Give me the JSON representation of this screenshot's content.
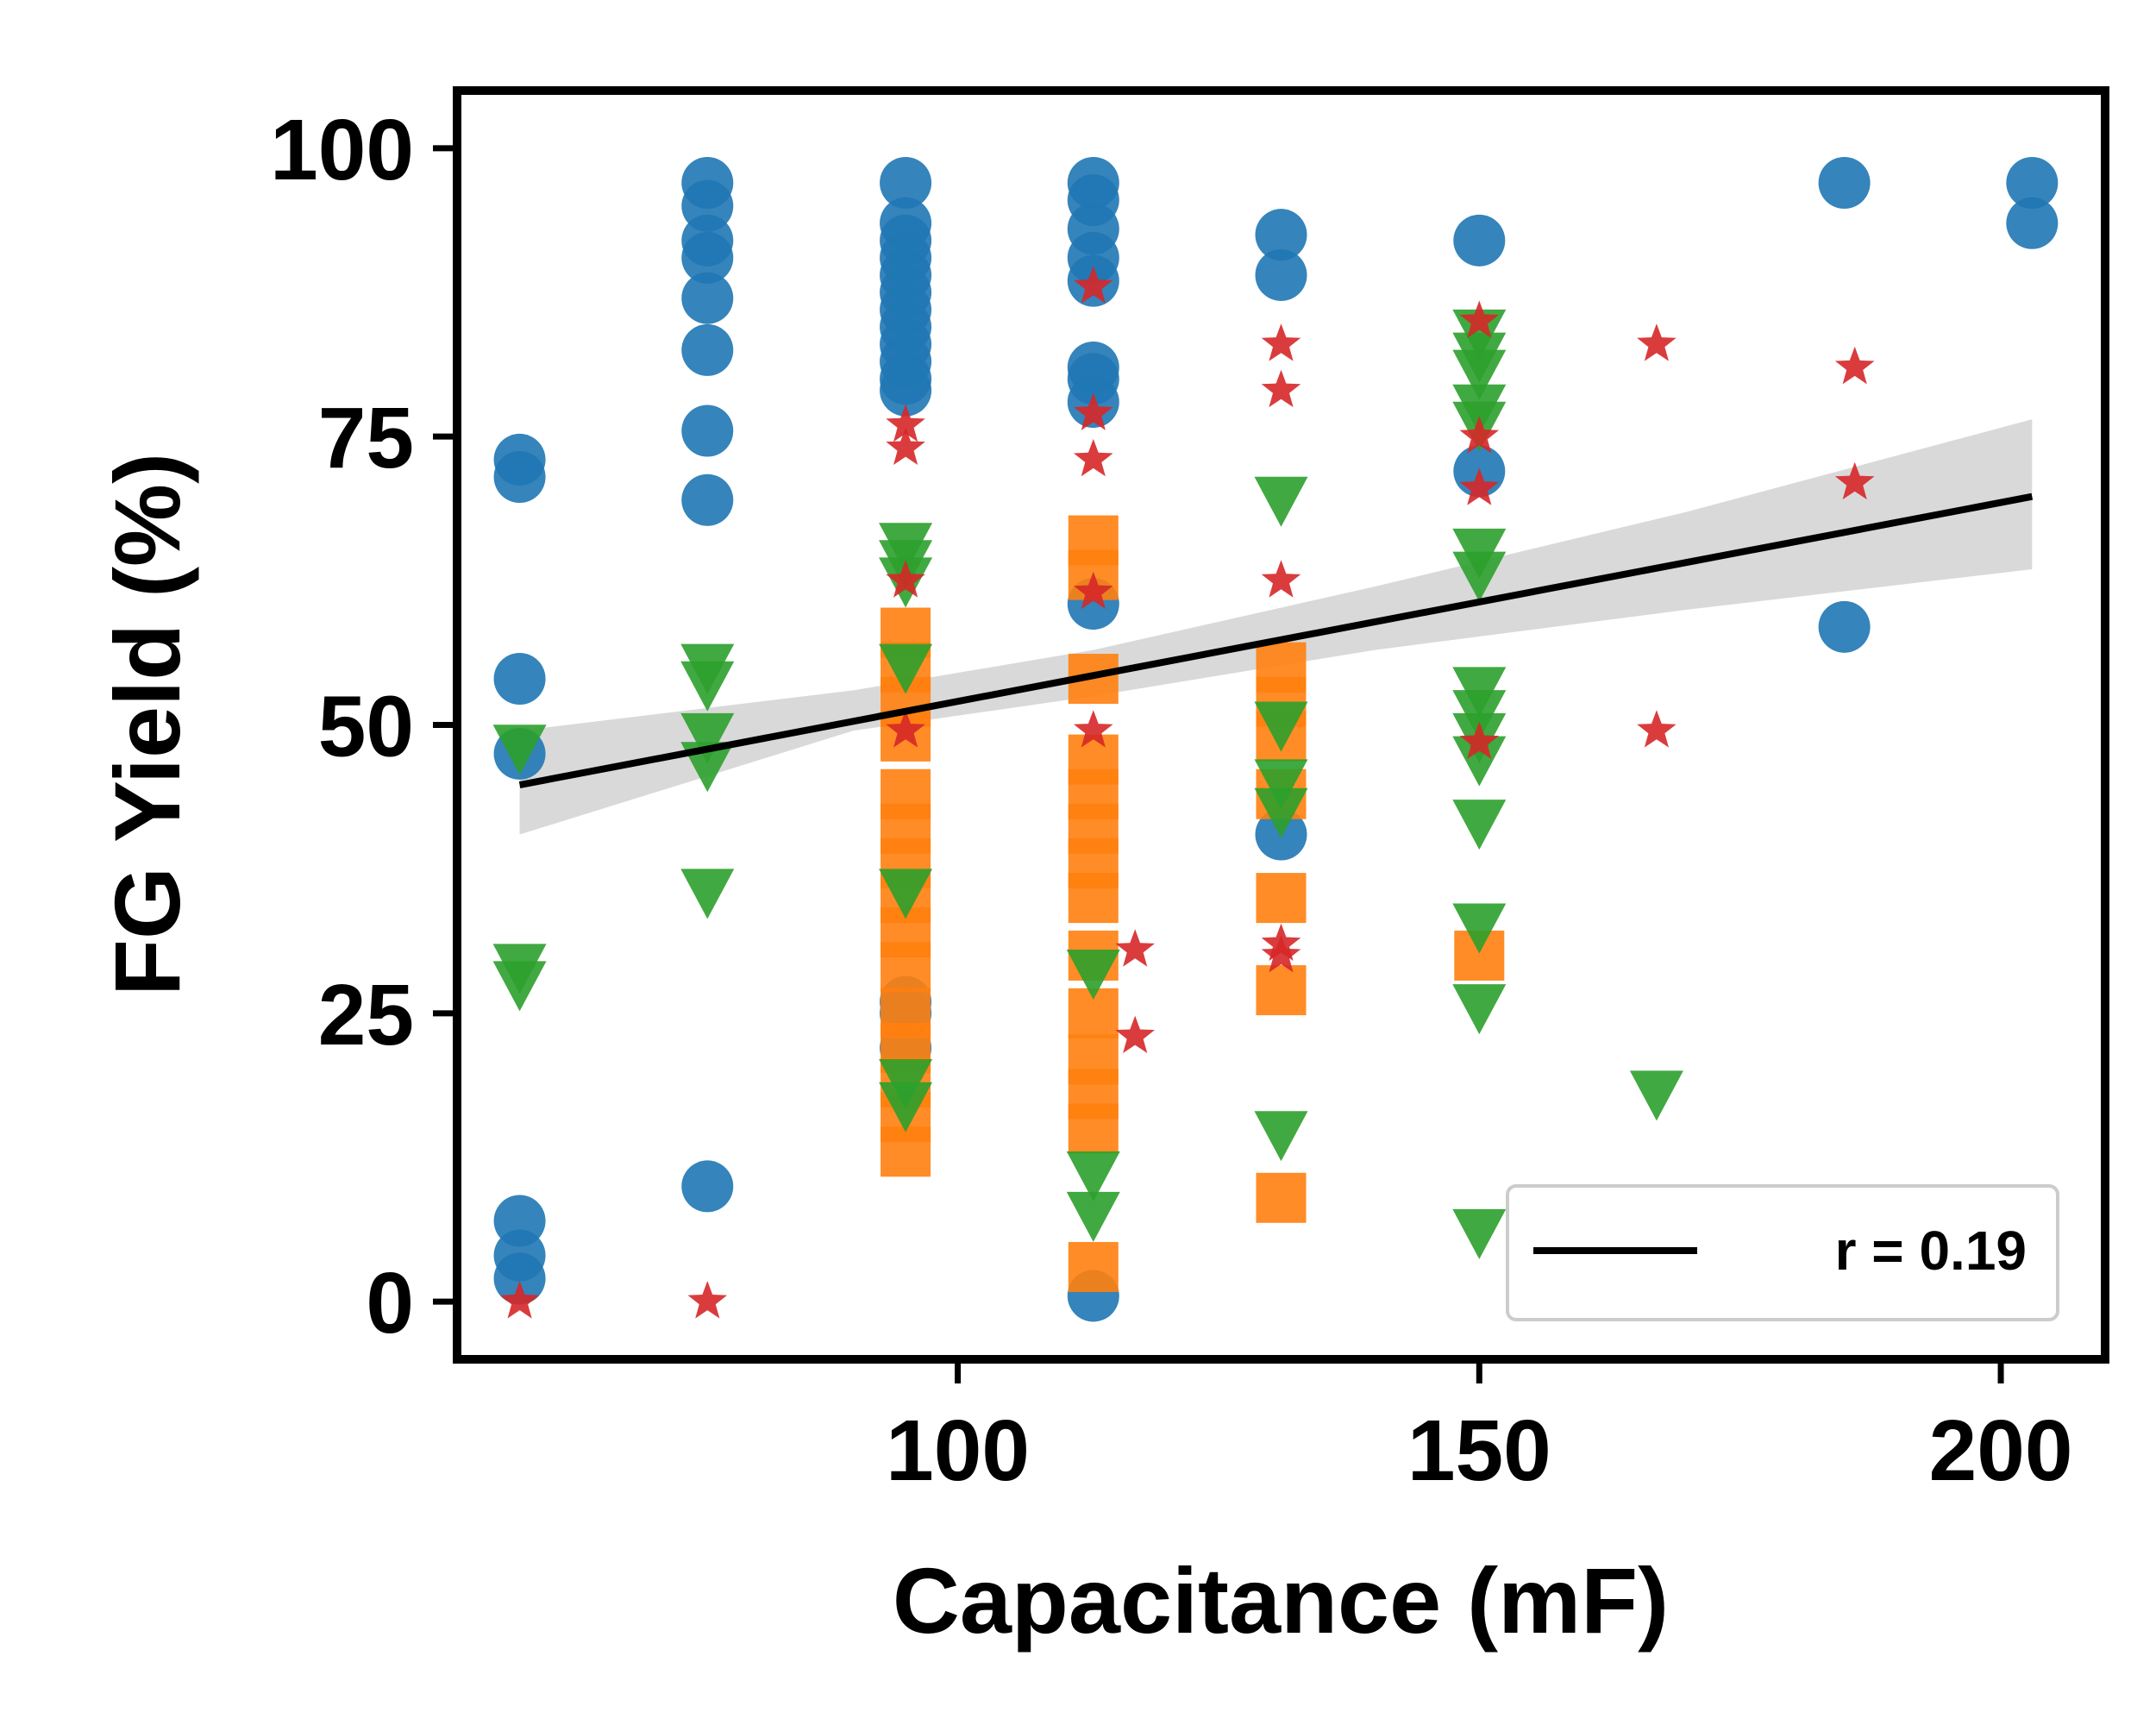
{
  "chart_data": {
    "type": "scatter",
    "xlabel": "Capacitance (mF)",
    "ylabel": "FG Yield (%)",
    "xlim": [
      52,
      210
    ],
    "ylim": [
      -5,
      105
    ],
    "xticks": [
      100,
      150,
      200
    ],
    "yticks": [
      0,
      25,
      50,
      75,
      100
    ],
    "grid": false,
    "legend": {
      "location": "lower-right",
      "entries": [
        {
          "label": "r = 0.19",
          "style": "line",
          "color": "#000000"
        }
      ]
    },
    "colors": {
      "blue": "#1f77b4",
      "orange": "#ff7f0e",
      "green": "#2ca02c",
      "red": "#d62728",
      "fit": "#000000",
      "band": "#d9d9d9"
    },
    "series": [
      {
        "marker": "circle",
        "color": "#1f77b4",
        "points": [
          [
            58,
            73
          ],
          [
            58,
            71.5
          ],
          [
            58,
            54
          ],
          [
            58,
            47.5
          ],
          [
            58,
            7
          ],
          [
            58,
            4
          ],
          [
            58,
            2
          ],
          [
            76,
            97
          ],
          [
            76,
            95
          ],
          [
            76,
            92
          ],
          [
            76,
            90.5
          ],
          [
            76,
            87
          ],
          [
            76,
            82.5
          ],
          [
            76,
            75.5
          ],
          [
            76,
            69.5
          ],
          [
            76,
            10
          ],
          [
            95,
            97
          ],
          [
            95,
            93.5
          ],
          [
            95,
            92
          ],
          [
            95,
            90.5
          ],
          [
            95,
            89
          ],
          [
            95,
            87.5
          ],
          [
            95,
            86
          ],
          [
            95,
            84.5
          ],
          [
            95,
            83
          ],
          [
            95,
            81.5
          ],
          [
            95,
            80
          ],
          [
            95,
            79
          ],
          [
            95,
            26
          ],
          [
            95,
            25
          ],
          [
            95,
            22
          ],
          [
            113,
            97
          ],
          [
            113,
            95.5
          ],
          [
            113,
            93
          ],
          [
            113,
            90.5
          ],
          [
            113,
            88.5
          ],
          [
            113,
            81
          ],
          [
            113,
            80
          ],
          [
            113,
            78
          ],
          [
            113,
            60.5
          ],
          [
            113,
            0.5
          ],
          [
            131,
            92.5
          ],
          [
            131,
            89
          ],
          [
            131,
            40.5
          ],
          [
            150,
            92
          ],
          [
            150,
            72
          ],
          [
            185,
            97
          ],
          [
            185,
            58.5
          ],
          [
            203,
            97
          ],
          [
            203,
            93.5
          ]
        ]
      },
      {
        "marker": "square",
        "color": "#ff7f0e",
        "points": [
          [
            95,
            58
          ],
          [
            95,
            55
          ],
          [
            95,
            52
          ],
          [
            95,
            49
          ],
          [
            95,
            44
          ],
          [
            95,
            41
          ],
          [
            95,
            38
          ],
          [
            95,
            35
          ],
          [
            95,
            32
          ],
          [
            95,
            29
          ],
          [
            95,
            25
          ],
          [
            95,
            22
          ],
          [
            95,
            19
          ],
          [
            95,
            16
          ],
          [
            95,
            13
          ],
          [
            113,
            66
          ],
          [
            113,
            63
          ],
          [
            113,
            54
          ],
          [
            113,
            47
          ],
          [
            113,
            44
          ],
          [
            113,
            41
          ],
          [
            113,
            38
          ],
          [
            113,
            35
          ],
          [
            113,
            30
          ],
          [
            113,
            25
          ],
          [
            113,
            21
          ],
          [
            113,
            18
          ],
          [
            113,
            15
          ],
          [
            113,
            3
          ],
          [
            131,
            55
          ],
          [
            131,
            52
          ],
          [
            131,
            49
          ],
          [
            131,
            44
          ],
          [
            131,
            35
          ],
          [
            131,
            27
          ],
          [
            131,
            9
          ],
          [
            150,
            30
          ]
        ]
      },
      {
        "marker": "triangle-down",
        "color": "#2ca02c",
        "points": [
          [
            58,
            48
          ],
          [
            58,
            29
          ],
          [
            58,
            27.5
          ],
          [
            76,
            55
          ],
          [
            76,
            53.5
          ],
          [
            76,
            49
          ],
          [
            76,
            46.5
          ],
          [
            76,
            35.5
          ],
          [
            95,
            65.5
          ],
          [
            95,
            64
          ],
          [
            95,
            62.5
          ],
          [
            95,
            55
          ],
          [
            95,
            35.5
          ],
          [
            95,
            19
          ],
          [
            95,
            17
          ],
          [
            113,
            28.5
          ],
          [
            113,
            11
          ],
          [
            113,
            7.5
          ],
          [
            131,
            69.5
          ],
          [
            131,
            50
          ],
          [
            131,
            45
          ],
          [
            131,
            42.5
          ],
          [
            131,
            14.5
          ],
          [
            150,
            84
          ],
          [
            150,
            82
          ],
          [
            150,
            80.5
          ],
          [
            150,
            77.5
          ],
          [
            150,
            76
          ],
          [
            150,
            65
          ],
          [
            150,
            63
          ],
          [
            150,
            53
          ],
          [
            150,
            51
          ],
          [
            150,
            49
          ],
          [
            150,
            47
          ],
          [
            150,
            41.5
          ],
          [
            150,
            32.5
          ],
          [
            150,
            25.5
          ],
          [
            150,
            6
          ],
          [
            167,
            18
          ]
        ]
      },
      {
        "marker": "star",
        "color": "#d62728",
        "points": [
          [
            58,
            0
          ],
          [
            76,
            0
          ],
          [
            95,
            76
          ],
          [
            95,
            74
          ],
          [
            95,
            62.5
          ],
          [
            95,
            49.5
          ],
          [
            113,
            88
          ],
          [
            113,
            77
          ],
          [
            113,
            73
          ],
          [
            113,
            61.5
          ],
          [
            113,
            49.5
          ],
          [
            117,
            30.5
          ],
          [
            117,
            23
          ],
          [
            131,
            83
          ],
          [
            131,
            79
          ],
          [
            131,
            62.5
          ],
          [
            131,
            31
          ],
          [
            131,
            30
          ],
          [
            150,
            85
          ],
          [
            150,
            75
          ],
          [
            150,
            70.5
          ],
          [
            150,
            48.5
          ],
          [
            167,
            83
          ],
          [
            167,
            49.5
          ],
          [
            186,
            81
          ],
          [
            186,
            71
          ]
        ]
      }
    ],
    "fit": {
      "label": "r = 0.19",
      "line": [
        [
          58,
          44.8
        ],
        [
          203,
          69.8
        ]
      ],
      "band_upper": [
        [
          58,
          49.5
        ],
        [
          90,
          53.0
        ],
        [
          113,
          56.5
        ],
        [
          140,
          62.0
        ],
        [
          170,
          68.5
        ],
        [
          203,
          76.5
        ]
      ],
      "band_lower": [
        [
          58,
          40.5
        ],
        [
          90,
          49.5
        ],
        [
          113,
          52.5
        ],
        [
          140,
          56.5
        ],
        [
          170,
          60.0
        ],
        [
          203,
          63.5
        ]
      ]
    }
  }
}
